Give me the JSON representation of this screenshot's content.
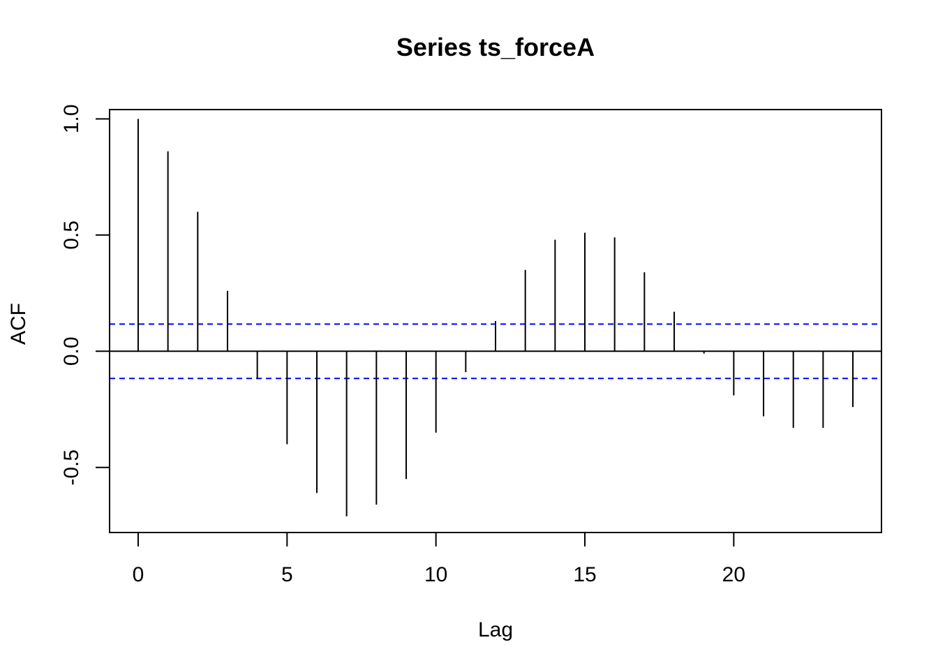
{
  "chart_data": {
    "type": "acf",
    "title": "Series  ts_forceA",
    "xlabel": "Lag",
    "ylabel": "ACF",
    "xlim": [
      -0.96,
      24.96
    ],
    "ylim": [
      -0.78,
      1.04
    ],
    "x_ticks": [
      0,
      5,
      10,
      15,
      20
    ],
    "x_tick_labels": [
      "0",
      "5",
      "10",
      "15",
      "20"
    ],
    "y_ticks": [
      -0.5,
      0.0,
      0.5,
      1.0
    ],
    "y_tick_labels": [
      "-0.5",
      "0.0",
      "0.5",
      "1.0"
    ],
    "lags": [
      0,
      1,
      2,
      3,
      4,
      5,
      6,
      7,
      8,
      9,
      10,
      11,
      12,
      13,
      14,
      15,
      16,
      17,
      18,
      19,
      20,
      21,
      22,
      23,
      24
    ],
    "values": [
      1.0,
      0.86,
      0.6,
      0.26,
      -0.12,
      -0.4,
      -0.61,
      -0.71,
      -0.66,
      -0.55,
      -0.35,
      -0.09,
      0.13,
      0.35,
      0.48,
      0.51,
      0.49,
      0.34,
      0.17,
      -0.01,
      -0.19,
      -0.28,
      -0.33,
      -0.33,
      -0.24
    ],
    "confidence_bound": 0.117,
    "colors": {
      "bars": "#000000",
      "zero_line": "#000000",
      "confidence_lines": "#0000ff",
      "frame": "#000000",
      "background": "#ffffff"
    },
    "grid": false,
    "legend": "none"
  }
}
